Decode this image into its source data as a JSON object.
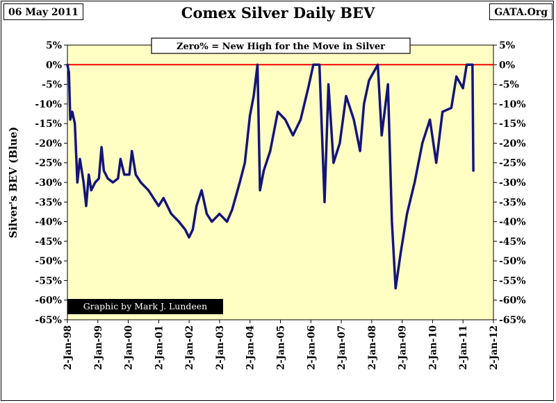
{
  "header": {
    "date_stamp": "06 May 2011",
    "title": "Comex Silver Daily BEV",
    "source": "GATA.Org"
  },
  "annotation": "Zero% = New High for the Move in Silver",
  "credit": "Graphic by Mark J. Lundeen",
  "colors": {
    "plot_background": "#ffffc4",
    "series": "#14147a",
    "zero_line": "#ff0000",
    "credit_background": "#000000"
  },
  "chart_data": {
    "type": "line",
    "title": "Comex Silver Daily BEV",
    "ylabel": "Silver's BEV (Blue)",
    "ylim": [
      -65,
      5
    ],
    "y_ticks": [
      "5%",
      "0%",
      "-5%",
      "-10%",
      "-15%",
      "-20%",
      "-25%",
      "-30%",
      "-35%",
      "-40%",
      "-45%",
      "-50%",
      "-55%",
      "-60%",
      "-65%"
    ],
    "x_ticks": [
      "2-Jan-98",
      "2-Jan-99",
      "2-Jan-00",
      "2-Jan-01",
      "2-Jan-02",
      "2-Jan-03",
      "2-Jan-04",
      "2-Jan-05",
      "2-Jan-06",
      "2-Jan-07",
      "2-Jan-08",
      "2-Jan-09",
      "2-Jan-10",
      "2-Jan-11",
      "2-Jan-12"
    ],
    "reference_line": {
      "y": 0,
      "label": "Zero% = New High for the Move in Silver"
    },
    "grid": false,
    "series": [
      {
        "values": [
          {
            "x": "1998-01-02",
            "y": 0
          },
          {
            "x": "1998-01-20",
            "y": -2
          },
          {
            "x": "1998-02-05",
            "y": -14
          },
          {
            "x": "1998-03-01",
            "y": -12
          },
          {
            "x": "1998-04-01",
            "y": -15
          },
          {
            "x": "1998-05-01",
            "y": -30
          },
          {
            "x": "1998-06-01",
            "y": -24
          },
          {
            "x": "1998-07-15",
            "y": -30
          },
          {
            "x": "1998-08-15",
            "y": -36
          },
          {
            "x": "1998-09-15",
            "y": -28
          },
          {
            "x": "1998-10-15",
            "y": -32
          },
          {
            "x": "1998-12-01",
            "y": -30
          },
          {
            "x": "1999-01-15",
            "y": -29
          },
          {
            "x": "1999-02-15",
            "y": -21
          },
          {
            "x": "1999-03-15",
            "y": -27
          },
          {
            "x": "1999-05-01",
            "y": -29
          },
          {
            "x": "1999-07-01",
            "y": -30
          },
          {
            "x": "1999-09-01",
            "y": -29
          },
          {
            "x": "1999-10-01",
            "y": -24
          },
          {
            "x": "1999-11-15",
            "y": -28
          },
          {
            "x": "2000-01-15",
            "y": -28
          },
          {
            "x": "2000-02-15",
            "y": -22
          },
          {
            "x": "2000-04-01",
            "y": -28
          },
          {
            "x": "2000-06-01",
            "y": -30
          },
          {
            "x": "2000-09-01",
            "y": -32
          },
          {
            "x": "2001-01-01",
            "y": -36
          },
          {
            "x": "2001-03-01",
            "y": -34
          },
          {
            "x": "2001-06-01",
            "y": -38
          },
          {
            "x": "2001-09-01",
            "y": -40
          },
          {
            "x": "2001-11-15",
            "y": -42
          },
          {
            "x": "2002-01-01",
            "y": -44
          },
          {
            "x": "2002-02-15",
            "y": -42
          },
          {
            "x": "2002-04-01",
            "y": -36
          },
          {
            "x": "2002-06-01",
            "y": -32
          },
          {
            "x": "2002-08-01",
            "y": -38
          },
          {
            "x": "2002-10-01",
            "y": -40
          },
          {
            "x": "2003-01-01",
            "y": -38
          },
          {
            "x": "2003-04-01",
            "y": -40
          },
          {
            "x": "2003-06-01",
            "y": -37
          },
          {
            "x": "2003-09-01",
            "y": -30
          },
          {
            "x": "2003-11-01",
            "y": -25
          },
          {
            "x": "2004-01-01",
            "y": -13
          },
          {
            "x": "2004-02-15",
            "y": -8
          },
          {
            "x": "2004-04-01",
            "y": 0
          },
          {
            "x": "2004-05-01",
            "y": -32
          },
          {
            "x": "2004-06-15",
            "y": -27
          },
          {
            "x": "2004-09-01",
            "y": -22
          },
          {
            "x": "2004-12-01",
            "y": -12
          },
          {
            "x": "2005-03-01",
            "y": -14
          },
          {
            "x": "2005-06-01",
            "y": -18
          },
          {
            "x": "2005-09-01",
            "y": -14
          },
          {
            "x": "2005-12-01",
            "y": -6
          },
          {
            "x": "2006-02-01",
            "y": 0
          },
          {
            "x": "2006-04-15",
            "y": 0
          },
          {
            "x": "2006-06-15",
            "y": -35
          },
          {
            "x": "2006-08-01",
            "y": -5
          },
          {
            "x": "2006-10-01",
            "y": -25
          },
          {
            "x": "2006-12-15",
            "y": -20
          },
          {
            "x": "2007-03-01",
            "y": -8
          },
          {
            "x": "2007-06-01",
            "y": -14
          },
          {
            "x": "2007-08-15",
            "y": -22
          },
          {
            "x": "2007-10-01",
            "y": -10
          },
          {
            "x": "2007-12-01",
            "y": -4
          },
          {
            "x": "2008-03-15",
            "y": 0
          },
          {
            "x": "2008-05-01",
            "y": -18
          },
          {
            "x": "2008-07-15",
            "y": -5
          },
          {
            "x": "2008-09-01",
            "y": -40
          },
          {
            "x": "2008-10-15",
            "y": -57
          },
          {
            "x": "2008-12-15",
            "y": -48
          },
          {
            "x": "2009-03-01",
            "y": -38
          },
          {
            "x": "2009-06-01",
            "y": -30
          },
          {
            "x": "2009-09-01",
            "y": -20
          },
          {
            "x": "2009-12-01",
            "y": -14
          },
          {
            "x": "2010-02-15",
            "y": -25
          },
          {
            "x": "2010-05-01",
            "y": -12
          },
          {
            "x": "2010-08-15",
            "y": -11
          },
          {
            "x": "2010-10-15",
            "y": -3
          },
          {
            "x": "2011-01-01",
            "y": -6
          },
          {
            "x": "2011-02-15",
            "y": 0
          },
          {
            "x": "2011-04-25",
            "y": 0
          },
          {
            "x": "2011-05-06",
            "y": -27
          }
        ]
      }
    ]
  }
}
